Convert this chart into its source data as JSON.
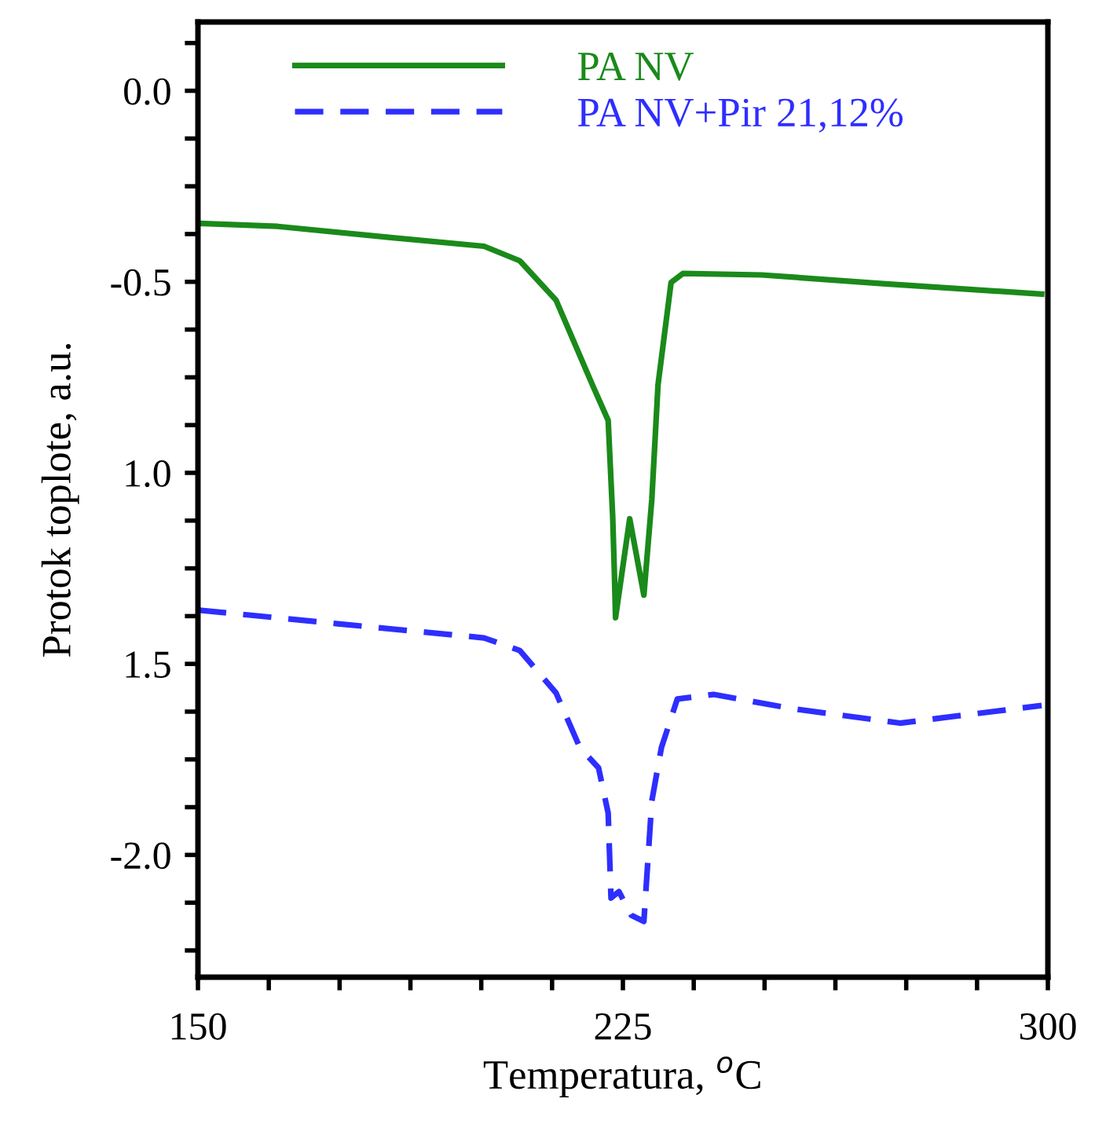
{
  "chart_data": {
    "type": "line",
    "xlabel": "Temperatura, $^{o}$C",
    "ylabel": "Protok toplote, a.u.",
    "xlim": [
      150,
      300
    ],
    "ylim": [
      -2.32,
      0.18
    ],
    "xticks": [
      150,
      {
        "value": 162.5,
        "label": null
      },
      {
        "value": 175,
        "label": null
      },
      {
        "value": 187.5,
        "label": null
      },
      {
        "value": 200,
        "label": null
      },
      {
        "value": 212.5,
        "label": null
      },
      225,
      {
        "value": 237.5,
        "label": null
      },
      {
        "value": 250,
        "label": null
      },
      {
        "value": 262.5,
        "label": null
      },
      {
        "value": 275,
        "label": null
      },
      {
        "value": 287.5,
        "label": null
      },
      300
    ],
    "yticks": [
      {
        "value": -2.25,
        "label": null
      },
      {
        "value": -2.125,
        "label": null
      },
      {
        "value": -2.0,
        "label": "-2.0"
      },
      {
        "value": -1.875,
        "label": null
      },
      {
        "value": -1.75,
        "label": null
      },
      {
        "value": -1.625,
        "label": null
      },
      {
        "value": -1.5,
        "label": "1.5"
      },
      {
        "value": -1.375,
        "label": null
      },
      {
        "value": -1.25,
        "label": null
      },
      {
        "value": -1.125,
        "label": null
      },
      {
        "value": -1.0,
        "label": "1.0"
      },
      {
        "value": -0.875,
        "label": null
      },
      {
        "value": -0.75,
        "label": null
      },
      {
        "value": -0.625,
        "label": null
      },
      {
        "value": -0.5,
        "label": "-0.5"
      },
      {
        "value": -0.375,
        "label": null
      },
      {
        "value": -0.25,
        "label": null
      },
      {
        "value": -0.125,
        "label": null
      },
      {
        "value": 0.0,
        "label": "0.0"
      },
      {
        "value": 0.125,
        "label": null
      }
    ],
    "grid": false,
    "legend": "top left",
    "series": [
      {
        "name": "PA NV",
        "color": "#1a8a1a",
        "line_style": "solid",
        "x": [
          150,
          164.1,
          183.3,
          200.5,
          206.8,
          213.2,
          219.6,
          222.4,
          223.2,
          223.5,
          223.7,
          226.2,
          228.7,
          230.1,
          231.2,
          233.5,
          235.6,
          249.5,
          270.9,
          298.9
        ],
        "values": [
          -0.347,
          -0.355,
          -0.383,
          -0.407,
          -0.445,
          -0.548,
          -0.769,
          -0.863,
          -1.116,
          -1.264,
          -1.379,
          -1.12,
          -1.32,
          -1.07,
          -0.769,
          -0.502,
          -0.478,
          -0.482,
          -0.505,
          -0.532
        ]
      },
      {
        "name": "PA NV+Pir 21,12%",
        "color": "#2e2eff",
        "line_style": "dashed",
        "x": [
          150,
          174.7,
          200.5,
          206.8,
          213.2,
          217.4,
          220.7,
          222.4,
          222.9,
          224.3,
          226.5,
          228.7,
          230.1,
          231.8,
          234.6,
          241,
          254.8,
          273.9,
          298.9
        ],
        "values": [
          -1.359,
          -1.395,
          -1.432,
          -1.465,
          -1.576,
          -1.719,
          -1.772,
          -1.891,
          -2.113,
          -2.096,
          -2.158,
          -2.174,
          -1.859,
          -1.719,
          -1.592,
          -1.58,
          -1.617,
          -1.655,
          -1.609
        ]
      }
    ]
  }
}
